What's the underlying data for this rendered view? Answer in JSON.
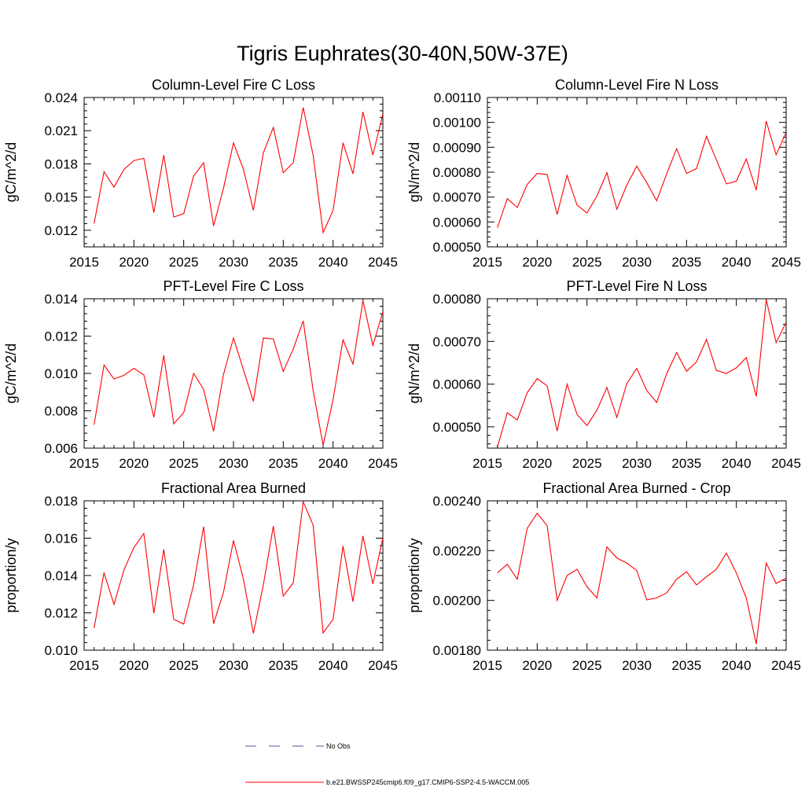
{
  "figure_title": "Tigris Euphrates(30-40N,50W-37E)",
  "legend": {
    "entries": [
      {
        "label": "No Obs",
        "color": "#4a5aa8",
        "style": "dashed"
      },
      {
        "label": "b.e21.BWSSP245cmip6.f09_g17.CMIP6-SSP2-4.5-WACCM.005",
        "color": "#ff0000",
        "style": "solid"
      }
    ]
  },
  "chart_data": [
    {
      "type": "line",
      "title": "Column-Level Fire C Loss",
      "ylabel": "gC/m^2/d",
      "xlim": [
        2015,
        2045
      ],
      "ylim": [
        0.0105,
        0.024
      ],
      "xticks": [
        2015,
        2020,
        2025,
        2030,
        2035,
        2040,
        2045
      ],
      "xtick_labels": [
        "2015",
        "2020",
        "2025",
        "2030",
        "2035",
        "2040",
        "2045"
      ],
      "yticks": [
        0.012,
        0.015,
        0.018,
        0.021,
        0.024
      ],
      "ytick_labels": [
        "0.012",
        "0.015",
        "0.018",
        "0.021",
        "0.024"
      ],
      "x": [
        2016,
        2017,
        2018,
        2019,
        2020,
        2021,
        2022,
        2023,
        2024,
        2025,
        2026,
        2027,
        2028,
        2029,
        2030,
        2031,
        2032,
        2033,
        2034,
        2035,
        2036,
        2037,
        2038,
        2039,
        2040,
        2041,
        2042,
        2043,
        2044,
        2045
      ],
      "series": [
        {
          "color": "#ff0000",
          "values": [
            0.0126,
            0.0173,
            0.0159,
            0.0175,
            0.0183,
            0.0185,
            0.0136,
            0.0188,
            0.0132,
            0.0135,
            0.0169,
            0.0181,
            0.0124,
            0.0158,
            0.0199,
            0.0175,
            0.0138,
            0.019,
            0.0213,
            0.0172,
            0.0181,
            0.0231,
            0.0188,
            0.0118,
            0.0138,
            0.0199,
            0.0171,
            0.0227,
            0.0188,
            0.0225
          ]
        }
      ]
    },
    {
      "type": "line",
      "title": "Column-Level Fire N Loss",
      "ylabel": "gN/m^2/d",
      "xlim": [
        2015,
        2045
      ],
      "ylim": [
        0.0005,
        0.0011
      ],
      "xticks": [
        2015,
        2020,
        2025,
        2030,
        2035,
        2040,
        2045
      ],
      "xtick_labels": [
        "2015",
        "2020",
        "2025",
        "2030",
        "2035",
        "2040",
        "2045"
      ],
      "yticks": [
        0.0005,
        0.0006,
        0.0007,
        0.0008,
        0.0009,
        0.001,
        0.0011
      ],
      "ytick_labels": [
        "0.00050",
        "0.00060",
        "0.00070",
        "0.00080",
        "0.00090",
        "0.00100",
        "0.00110"
      ],
      "x": [
        2016,
        2017,
        2018,
        2019,
        2020,
        2021,
        2022,
        2023,
        2024,
        2025,
        2026,
        2027,
        2028,
        2029,
        2030,
        2031,
        2032,
        2033,
        2034,
        2035,
        2036,
        2037,
        2038,
        2039,
        2040,
        2041,
        2042,
        2043,
        2044,
        2045
      ],
      "series": [
        {
          "color": "#ff0000",
          "values": [
            0.000577,
            0.000694,
            0.000658,
            0.000751,
            0.000795,
            0.000791,
            0.00063,
            0.000787,
            0.000668,
            0.000636,
            0.000704,
            0.000798,
            0.000651,
            0.000748,
            0.000824,
            0.000758,
            0.000685,
            0.000793,
            0.000894,
            0.000795,
            0.000815,
            0.000944,
            0.00085,
            0.000753,
            0.000764,
            0.000853,
            0.000728,
            0.001005,
            0.00087,
            0.00096
          ]
        }
      ]
    },
    {
      "type": "line",
      "title": "PFT-Level Fire C Loss",
      "ylabel": "gC/m^2/d",
      "xlim": [
        2015,
        2045
      ],
      "ylim": [
        0.006,
        0.014
      ],
      "xticks": [
        2015,
        2020,
        2025,
        2030,
        2035,
        2040,
        2045
      ],
      "xtick_labels": [
        "2015",
        "2020",
        "2025",
        "2030",
        "2035",
        "2040",
        "2045"
      ],
      "yticks": [
        0.006,
        0.008,
        0.01,
        0.012,
        0.014
      ],
      "ytick_labels": [
        "0.006",
        "0.008",
        "0.010",
        "0.012",
        "0.014"
      ],
      "x": [
        2016,
        2017,
        2018,
        2019,
        2020,
        2021,
        2022,
        2023,
        2024,
        2025,
        2026,
        2027,
        2028,
        2029,
        2030,
        2031,
        2032,
        2033,
        2034,
        2035,
        2036,
        2037,
        2038,
        2039,
        2040,
        2041,
        2042,
        2043,
        2044,
        2045
      ],
      "series": [
        {
          "color": "#ff0000",
          "values": [
            0.00725,
            0.01045,
            0.0097,
            0.0099,
            0.01028,
            0.00992,
            0.00765,
            0.01097,
            0.0073,
            0.0079,
            0.01,
            0.00915,
            0.0069,
            0.00995,
            0.0119,
            0.0102,
            0.0085,
            0.0119,
            0.01185,
            0.0101,
            0.0113,
            0.01282,
            0.0091,
            0.00615,
            0.0086,
            0.0118,
            0.0105,
            0.0139,
            0.0115,
            0.0133
          ]
        }
      ]
    },
    {
      "type": "line",
      "title": "PFT-Level Fire N Loss",
      "ylabel": "gN/m^2/d",
      "xlim": [
        2015,
        2045
      ],
      "ylim": [
        0.00045,
        0.0008
      ],
      "xticks": [
        2015,
        2020,
        2025,
        2030,
        2035,
        2040,
        2045
      ],
      "xtick_labels": [
        "2015",
        "2020",
        "2025",
        "2030",
        "2035",
        "2040",
        "2045"
      ],
      "yticks": [
        0.0005,
        0.0006,
        0.0007,
        0.0008
      ],
      "ytick_labels": [
        "0.00050",
        "0.00060",
        "0.00070",
        "0.00080"
      ],
      "x": [
        2016,
        2017,
        2018,
        2019,
        2020,
        2021,
        2022,
        2023,
        2024,
        2025,
        2026,
        2027,
        2028,
        2029,
        2030,
        2031,
        2032,
        2033,
        2034,
        2035,
        2036,
        2037,
        2038,
        2039,
        2040,
        2041,
        2042,
        2043,
        2044,
        2045
      ],
      "series": [
        {
          "color": "#ff0000",
          "values": [
            0.000452,
            0.000533,
            0.000516,
            0.00058,
            0.000613,
            0.000596,
            0.00049,
            0.0006,
            0.000529,
            0.000503,
            0.000539,
            0.000592,
            0.000522,
            0.000601,
            0.000637,
            0.000585,
            0.000557,
            0.000624,
            0.000674,
            0.00063,
            0.000652,
            0.000705,
            0.000632,
            0.000625,
            0.000638,
            0.000662,
            0.000571,
            0.000798,
            0.000697,
            0.000745
          ]
        }
      ]
    },
    {
      "type": "line",
      "title": "Fractional Area Burned",
      "ylabel": "proportion/y",
      "xlim": [
        2015,
        2045
      ],
      "ylim": [
        0.01,
        0.018
      ],
      "xticks": [
        2015,
        2020,
        2025,
        2030,
        2035,
        2040,
        2045
      ],
      "xtick_labels": [
        "2015",
        "2020",
        "2025",
        "2030",
        "2035",
        "2040",
        "2045"
      ],
      "yticks": [
        0.01,
        0.012,
        0.014,
        0.016,
        0.018
      ],
      "ytick_labels": [
        "0.010",
        "0.012",
        "0.014",
        "0.016",
        "0.018"
      ],
      "x": [
        2016,
        2017,
        2018,
        2019,
        2020,
        2021,
        2022,
        2023,
        2024,
        2025,
        2026,
        2027,
        2028,
        2029,
        2030,
        2031,
        2032,
        2033,
        2034,
        2035,
        2036,
        2037,
        2038,
        2039,
        2040,
        2041,
        2042,
        2043,
        2044,
        2045
      ],
      "series": [
        {
          "color": "#ff0000",
          "values": [
            0.01118,
            0.01415,
            0.01245,
            0.0143,
            0.0155,
            0.01625,
            0.01198,
            0.0154,
            0.01165,
            0.0114,
            0.0135,
            0.01662,
            0.01142,
            0.0131,
            0.01588,
            0.0138,
            0.0109,
            0.0135,
            0.01665,
            0.0129,
            0.0136,
            0.01795,
            0.0167,
            0.01092,
            0.01165,
            0.01558,
            0.0126,
            0.01612,
            0.01355,
            0.016
          ]
        }
      ]
    },
    {
      "type": "line",
      "title": "Fractional Area Burned - Crop",
      "ylabel": "proportion/y",
      "xlim": [
        2015,
        2045
      ],
      "ylim": [
        0.0018,
        0.0024
      ],
      "xticks": [
        2015,
        2020,
        2025,
        2030,
        2035,
        2040,
        2045
      ],
      "xtick_labels": [
        "2015",
        "2020",
        "2025",
        "2030",
        "2035",
        "2040",
        "2045"
      ],
      "yticks": [
        0.0018,
        0.002,
        0.0022,
        0.0024
      ],
      "ytick_labels": [
        "0.00180",
        "0.00200",
        "0.00220",
        "0.00240"
      ],
      "x": [
        2016,
        2017,
        2018,
        2019,
        2020,
        2021,
        2022,
        2023,
        2024,
        2025,
        2026,
        2027,
        2028,
        2029,
        2030,
        2031,
        2032,
        2033,
        2034,
        2035,
        2036,
        2037,
        2038,
        2039,
        2040,
        2041,
        2042,
        2043,
        2044,
        2045
      ],
      "series": [
        {
          "color": "#ff0000",
          "values": [
            0.00211,
            0.002145,
            0.002085,
            0.00229,
            0.00235,
            0.0023,
            0.002,
            0.0021,
            0.002125,
            0.002055,
            0.00201,
            0.002215,
            0.00217,
            0.00215,
            0.00212,
            0.002002,
            0.00201,
            0.00203,
            0.002085,
            0.002115,
            0.002062,
            0.002095,
            0.002125,
            0.00219,
            0.00211,
            0.00201,
            0.001825,
            0.00215,
            0.002068,
            0.00209
          ]
        }
      ]
    }
  ]
}
